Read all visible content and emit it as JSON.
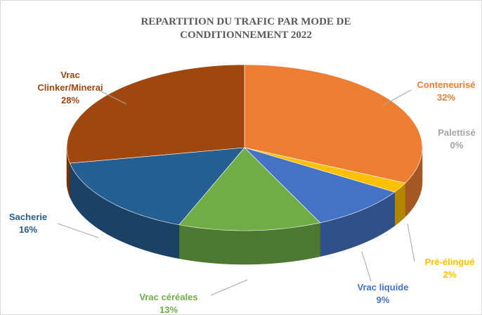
{
  "chart_data": {
    "type": "pie3d",
    "title": "REPARTITION DU TRAFIC PAR MODE DE CONDITIONNEMENT  2022",
    "categories": [
      "Conteneurisé",
      "Palettisé",
      "Pré-élingué",
      "Vrac liquide",
      "Vrac céréales",
      "Sacherie",
      "Vrac Clinker/Minerai"
    ],
    "values": [
      32,
      0,
      2,
      9,
      13,
      16,
      28
    ],
    "value_labels": [
      "32%",
      "0%",
      "2%",
      "9%",
      "13%",
      "16%",
      "28%"
    ],
    "colors": [
      "#ED7D31",
      "#A5A5A5",
      "#FFC000",
      "#4472C4",
      "#70AD47",
      "#255E91",
      "#9E480E"
    ]
  }
}
